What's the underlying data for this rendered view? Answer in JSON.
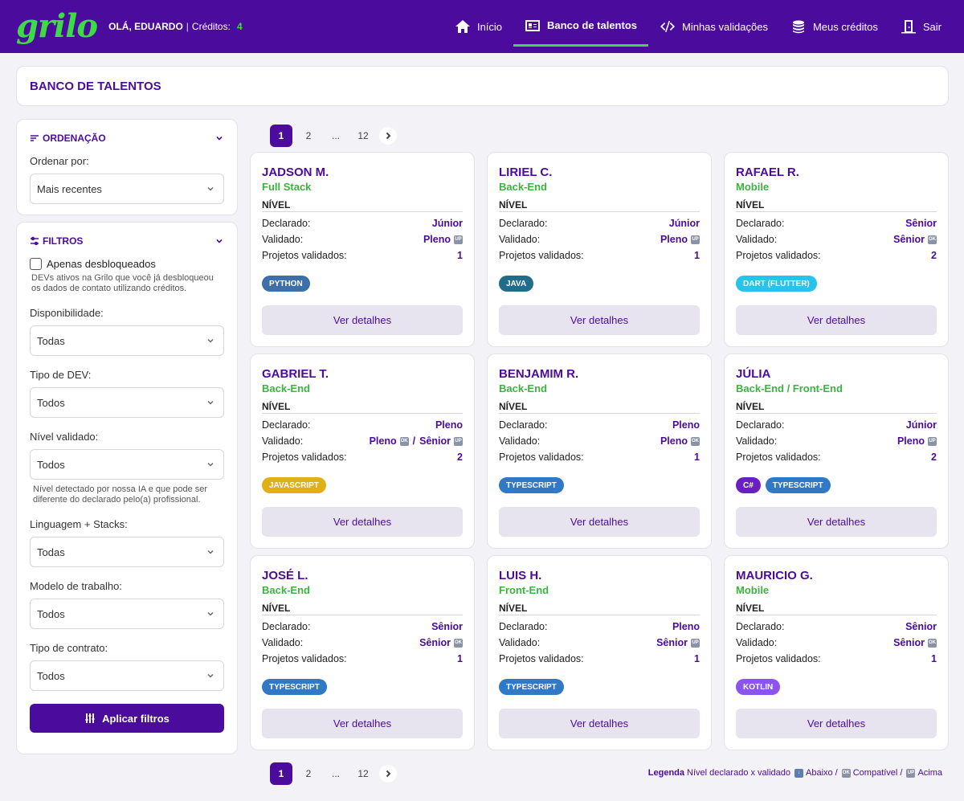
{
  "header": {
    "logo": "grilo",
    "greeting": "OLÁ, EDUARDO",
    "separator": "|",
    "credits_label": "Créditos:",
    "credits_value": "4",
    "nav": [
      {
        "label": "Início",
        "icon": "home-icon"
      },
      {
        "label": "Banco de talentos",
        "icon": "id-card-icon",
        "active": true
      },
      {
        "label": "Minhas validações",
        "icon": "code-icon"
      },
      {
        "label": "Meus créditos",
        "icon": "coins-icon"
      },
      {
        "label": "Sair",
        "icon": "exit-door-icon"
      }
    ]
  },
  "page": {
    "title": "BANCO DE TALENTOS"
  },
  "sort": {
    "title": "ORDENAÇÃO",
    "label": "Ordenar por:",
    "value": "Mais recentes"
  },
  "filters": {
    "title": "FILTROS",
    "only_unlocked": "Apenas desbloqueados",
    "only_unlocked_help": "DEVs ativos na Grilo que você já desbloqueou os dados de contato utilizando créditos.",
    "availability_label": "Disponibilidade:",
    "availability_value": "Todas",
    "dev_type_label": "Tipo de DEV:",
    "dev_type_value": "Todos",
    "validated_level_label": "Nível validado:",
    "validated_level_value": "Todos",
    "validated_level_help": "Nível detectado por nossa IA e que pode ser diferente do declarado pelo(a) profissional.",
    "stacks_label": "Linguagem + Stacks:",
    "stacks_value": "Todas",
    "work_model_label": "Modelo de trabalho:",
    "work_model_value": "Todos",
    "contract_label": "Tipo de contrato:",
    "contract_value": "Todos",
    "apply_label": "Aplicar filtros"
  },
  "pagination": {
    "pages": [
      "1",
      "2",
      "...",
      "12"
    ],
    "current": "1"
  },
  "card_labels": {
    "nivel": "NÍVEL",
    "declared": "Declarado:",
    "validated": "Validado:",
    "projects": "Projetos validados:",
    "details": "Ver detalhes"
  },
  "talents": [
    {
      "name": "JADSON M.",
      "role": "Full Stack",
      "declared": "Júnior",
      "validated": "Pleno",
      "validated_badge": "UP",
      "projects": "1",
      "tags": [
        {
          "label": "PYTHON",
          "color": "#3d6fa8"
        }
      ]
    },
    {
      "name": "LIRIEL C.",
      "role": "Back-End",
      "declared": "Júnior",
      "validated": "Pleno",
      "validated_badge": "UP",
      "projects": "1",
      "tags": [
        {
          "label": "JAVA",
          "color": "#1f6d8a"
        }
      ]
    },
    {
      "name": "RAFAEL R.",
      "role": "Mobile",
      "declared": "Sênior",
      "validated": "Sênior",
      "validated_badge": "OK",
      "projects": "2",
      "tags": [
        {
          "label": "DART (FLUTTER)",
          "color": "#27c3e8"
        }
      ]
    },
    {
      "name": "GABRIEL T.",
      "role": "Back-End",
      "declared": "Pleno",
      "validated": "Pleno",
      "validated_badge": "OK",
      "validated2": "Sênior",
      "validated2_badge": "UP",
      "projects": "2",
      "tags": [
        {
          "label": "JAVASCRIPT",
          "color": "#e0b016"
        }
      ]
    },
    {
      "name": "BENJAMIM R.",
      "role": "Back-End",
      "declared": "Pleno",
      "validated": "Pleno",
      "validated_badge": "OK",
      "projects": "1",
      "tags": [
        {
          "label": "TYPESCRIPT",
          "color": "#3178c6"
        }
      ]
    },
    {
      "name": "JÚLIA",
      "role": "Back-End / Front-End",
      "declared": "Júnior",
      "validated": "Pleno",
      "validated_badge": "UP",
      "projects": "2",
      "tags": [
        {
          "label": "C#",
          "color": "#6a1fc4"
        },
        {
          "label": "TYPESCRIPT",
          "color": "#3178c6"
        }
      ]
    },
    {
      "name": "JOSÉ L.",
      "role": "Back-End",
      "declared": "Sênior",
      "validated": "Sênior",
      "validated_badge": "OK",
      "projects": "1",
      "tags": [
        {
          "label": "TYPESCRIPT",
          "color": "#3178c6"
        }
      ]
    },
    {
      "name": "LUIS H.",
      "role": "Front-End",
      "declared": "Pleno",
      "validated": "Sênior",
      "validated_badge": "UP",
      "projects": "1",
      "tags": [
        {
          "label": "TYPESCRIPT",
          "color": "#3178c6"
        }
      ]
    },
    {
      "name": "MAURICIO G.",
      "role": "Mobile",
      "declared": "Sênior",
      "validated": "Sênior",
      "validated_badge": "OK",
      "projects": "1",
      "tags": [
        {
          "label": "KOTLIN",
          "color": "#8b53f0"
        }
      ]
    }
  ],
  "legend": {
    "title": "Legenda",
    "text": "Nível declarado x validado",
    "below": "Abaixo",
    "compatible": "Compatível",
    "above": "Acima",
    "sep": "/"
  }
}
